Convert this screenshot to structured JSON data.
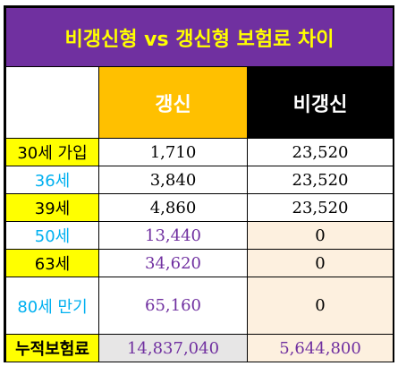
{
  "title": "비갱신형 vs 갱신형 보험료 차이",
  "headers": {
    "renew": "갱신",
    "nonrenew": "비갱신"
  },
  "rows": [
    {
      "label": "30세 가입",
      "renew": "1,710",
      "nonrenew": "23,520"
    },
    {
      "label": "36세",
      "renew": "3,840",
      "nonrenew": "23,520"
    },
    {
      "label": "39세",
      "renew": "4,860",
      "nonrenew": "23,520"
    },
    {
      "label": "50세",
      "renew": "13,440",
      "nonrenew": "0"
    },
    {
      "label": "63세",
      "renew": "34,620",
      "nonrenew": "0"
    },
    {
      "label": "80세 만기",
      "renew": "65,160",
      "nonrenew": "0"
    }
  ],
  "total": {
    "label": "누적보험료",
    "renew": "14,837,040",
    "nonrenew": "5,644,800"
  },
  "colors": {
    "title_bg": "#7030a0",
    "title_text": "#ffff00",
    "renew_header": "#ffc000",
    "nonrenew_header": "#000000",
    "label_yellow": "#ffff00",
    "label_blue_text": "#00b0f0",
    "purple_text": "#7030a0",
    "peach": "#fdf0df",
    "grey": "#e7e6e6"
  }
}
